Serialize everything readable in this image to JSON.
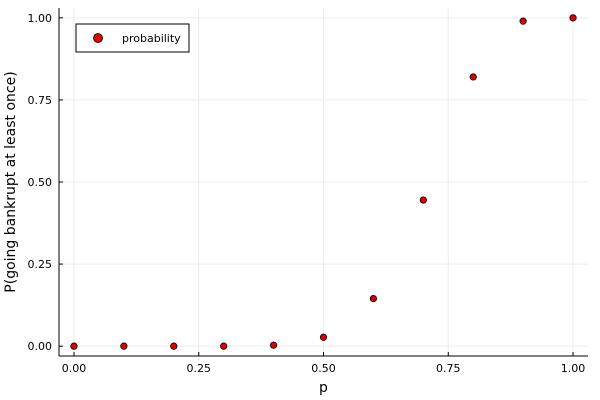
{
  "chart_data": {
    "type": "scatter",
    "xlabel": "p",
    "ylabel": "P(going bankrupt at least once)",
    "xlim": [
      -0.03,
      1.03
    ],
    "ylim": [
      -0.03,
      1.03
    ],
    "grid": true,
    "x_ticks": [
      0.0,
      0.25,
      0.5,
      0.75,
      1.0
    ],
    "x_tick_labels": [
      "0.00",
      "0.25",
      "0.50",
      "0.75",
      "1.00"
    ],
    "y_ticks": [
      0.0,
      0.25,
      0.5,
      0.75,
      1.0
    ],
    "y_tick_labels": [
      "0.00",
      "0.25",
      "0.50",
      "0.75",
      "1.00"
    ],
    "legend_position": "top-left",
    "colors": {
      "marker_fill": "#e00000",
      "marker_edge": "#000000",
      "grid": "#ececec",
      "axis": "#000000"
    },
    "series": [
      {
        "name": "probability",
        "x": [
          0.0,
          0.1,
          0.2,
          0.3,
          0.4,
          0.5,
          0.6,
          0.7,
          0.8,
          0.9,
          1.0
        ],
        "y": [
          0.0,
          0.0,
          0.0,
          0.0,
          0.003,
          0.027,
          0.145,
          0.445,
          0.82,
          0.99,
          1.0
        ]
      }
    ]
  }
}
